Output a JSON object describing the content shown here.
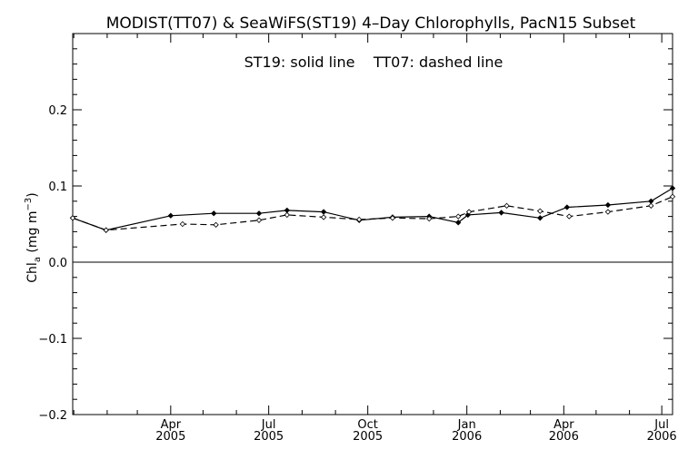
{
  "chart_data": {
    "type": "line",
    "title": "MODIST(TT07) & SeaWiFS(ST19) 4–Day Chlorophylls, PacN15 Subset",
    "annotation": "ST19: solid line    TT07: dashed line",
    "ylabel": {
      "main": "Chl",
      "sub": "a",
      "unit_open": "(mg m",
      "unit_sup": "−3",
      "unit_close": ")"
    },
    "ylim": [
      -0.2,
      0.3
    ],
    "xlim": [
      "2004-12-31",
      "2006-07-11"
    ],
    "y_ticks": [
      {
        "value": -0.2,
        "label": "−0.2"
      },
      {
        "value": -0.1,
        "label": "−0.1"
      },
      {
        "value": 0.0,
        "label": "0.0"
      },
      {
        "value": 0.1,
        "label": "0.1"
      },
      {
        "value": 0.2,
        "label": "0.2"
      }
    ],
    "x_ticks": [
      {
        "date": "2005-04-01",
        "month": "Apr",
        "year": "2005"
      },
      {
        "date": "2005-07-01",
        "month": "Jul",
        "year": "2005"
      },
      {
        "date": "2005-10-01",
        "month": "Oct",
        "year": "2005"
      },
      {
        "date": "2006-01-01",
        "month": "Jan",
        "year": "2006"
      },
      {
        "date": "2006-04-01",
        "month": "Apr",
        "year": "2006"
      },
      {
        "date": "2006-07-01",
        "month": "Jul",
        "year": "2006"
      }
    ],
    "zero_line": 0.0,
    "series": [
      {
        "id": "ST19",
        "style": "solid",
        "x": [
          "2004-12-31",
          "2005-01-31",
          "2005-04-01",
          "2005-05-11",
          "2005-06-22",
          "2005-07-18",
          "2005-08-21",
          "2005-09-23",
          "2005-10-24",
          "2005-11-27",
          "2005-12-24",
          "2006-01-02",
          "2006-02-02",
          "2006-03-10",
          "2006-04-04",
          "2006-05-12",
          "2006-06-21",
          "2006-07-11"
        ],
        "y": [
          0.058,
          0.042,
          0.061,
          0.064,
          0.064,
          0.068,
          0.066,
          0.055,
          0.059,
          0.06,
          0.052,
          0.062,
          0.065,
          0.058,
          0.072,
          0.075,
          0.08,
          0.097
        ]
      },
      {
        "id": "TT07",
        "style": "dashed",
        "x": [
          "2004-12-31",
          "2005-01-31",
          "2005-04-12",
          "2005-05-13",
          "2005-06-22",
          "2005-07-18",
          "2005-08-21",
          "2005-09-23",
          "2005-10-24",
          "2005-11-27",
          "2005-12-24",
          "2006-01-03",
          "2006-02-07",
          "2006-03-10",
          "2006-04-06",
          "2006-05-12",
          "2006-06-21",
          "2006-07-11"
        ],
        "y": [
          0.058,
          0.042,
          0.05,
          0.049,
          0.055,
          0.062,
          0.059,
          0.056,
          0.058,
          0.057,
          0.06,
          0.066,
          0.074,
          0.067,
          0.06,
          0.066,
          0.074,
          0.086
        ]
      }
    ],
    "grid": false,
    "legend": "none"
  }
}
